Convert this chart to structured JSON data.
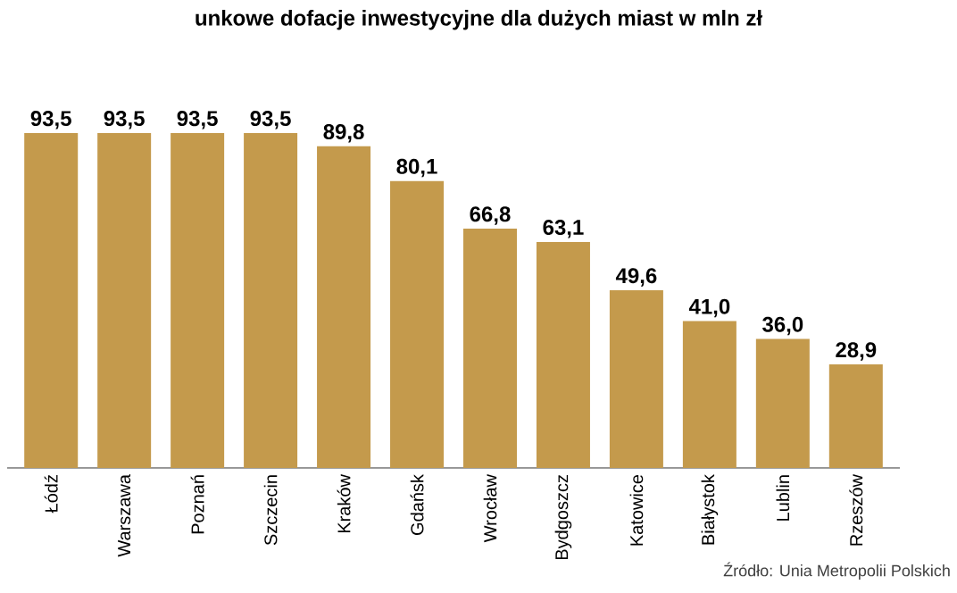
{
  "chart_data": {
    "type": "bar",
    "title": "unkowe dofacje inwestycyjne dla dużych miast w mln zł",
    "categories": [
      "Łódź",
      "Warszawa",
      "Poznań",
      "Szczecin",
      "Kraków",
      "Gdańsk",
      "Wrocław",
      "Bydgoszcz",
      "Katowice",
      "Białystok",
      "Lublin",
      "Rzeszów"
    ],
    "values": [
      93.5,
      93.5,
      93.5,
      93.5,
      89.8,
      80.1,
      66.8,
      63.1,
      49.6,
      41.0,
      36.0,
      28.9
    ],
    "value_labels": [
      "93,5",
      "93,5",
      "93,5",
      "93,5",
      "89,8",
      "80,1",
      "66,8",
      "63,1",
      "49,6",
      "41,0",
      "36,0",
      "28,9"
    ],
    "color": "#c49a4c",
    "annotations": [
      "Źródło: Unia Metropolii Polskich"
    ]
  }
}
